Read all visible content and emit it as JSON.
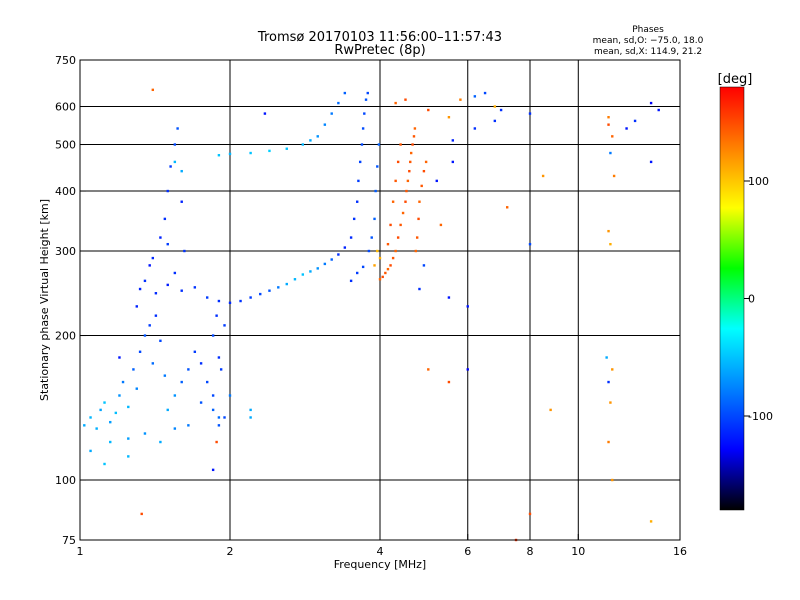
{
  "chart_data": {
    "type": "scatter",
    "title": "Tromsø 20170103 11:56:00–11:57:43",
    "subtitle": "RwPretec (8p)",
    "stats": {
      "header": "Phases",
      "line1": "mean, sd,O: −75.0, 18.0",
      "line2": "mean, sd,X: 114.9, 21.2"
    },
    "xlabel": "Frequency [MHz]",
    "ylabel": "Stationary phase Virtual Height [km]",
    "x_scale": "log",
    "y_scale": "log",
    "xlim": [
      1,
      16
    ],
    "ylim": [
      75,
      750
    ],
    "xticks": [
      1,
      2,
      4,
      6,
      8,
      10,
      16
    ],
    "yticks": [
      75,
      100,
      200,
      300,
      400,
      500,
      600,
      750
    ],
    "x_gridlines": [
      2,
      4,
      6,
      8,
      10
    ],
    "y_gridlines": [
      100,
      200,
      300,
      400,
      500,
      600
    ],
    "colorbar": {
      "label": "[deg]",
      "range": [
        -180,
        180
      ],
      "ticks": [
        100,
        0,
        -100
      ],
      "colors": [
        "#ff0000",
        "#ff8000",
        "#ffff00",
        "#00ff00",
        "#00ffff",
        "#0080ff",
        "#0000ff",
        "#000000"
      ]
    },
    "series": [
      {
        "points": [
          [
            1.02,
            130,
            -60
          ],
          [
            1.05,
            135,
            -55
          ],
          [
            1.08,
            128,
            -58
          ],
          [
            1.1,
            140,
            -62
          ],
          [
            1.12,
            145,
            -50
          ],
          [
            1.15,
            132,
            -65
          ],
          [
            1.18,
            138,
            -52
          ],
          [
            1.2,
            150,
            -70
          ],
          [
            1.22,
            160,
            -80
          ],
          [
            1.25,
            142,
            -55
          ],
          [
            1.28,
            170,
            -90
          ],
          [
            1.3,
            155,
            -75
          ],
          [
            1.32,
            185,
            -100
          ],
          [
            1.35,
            200,
            -95
          ],
          [
            1.38,
            210,
            -105
          ],
          [
            1.4,
            175,
            -85
          ],
          [
            1.42,
            220,
            -110
          ],
          [
            1.45,
            195,
            -100
          ],
          [
            1.48,
            165,
            -80
          ],
          [
            1.5,
            140,
            -60
          ],
          [
            1.55,
            150,
            -70
          ],
          [
            1.6,
            160,
            -90
          ],
          [
            1.65,
            170,
            -95
          ],
          [
            1.7,
            185,
            -105
          ],
          [
            1.75,
            175,
            -110
          ],
          [
            1.8,
            160,
            -100
          ],
          [
            1.85,
            140,
            -90
          ],
          [
            1.9,
            135,
            -85
          ],
          [
            1.05,
            115,
            -60
          ],
          [
            1.15,
            120,
            -55
          ],
          [
            1.25,
            122,
            -65
          ],
          [
            1.35,
            125,
            -70
          ],
          [
            1.45,
            120,
            -60
          ],
          [
            1.55,
            128,
            -75
          ],
          [
            1.65,
            130,
            -80
          ],
          [
            1.75,
            145,
            -95
          ],
          [
            1.85,
            150,
            -100
          ],
          [
            1.9,
            180,
            -110
          ],
          [
            1.92,
            170,
            -105
          ],
          [
            1.2,
            180,
            -120
          ],
          [
            1.3,
            230,
            -115
          ],
          [
            1.35,
            260,
            -110
          ],
          [
            1.4,
            290,
            -112
          ],
          [
            1.45,
            320,
            -115
          ],
          [
            1.48,
            350,
            -110
          ],
          [
            1.5,
            400,
            -110
          ],
          [
            1.52,
            450,
            -105
          ],
          [
            1.55,
            500,
            -100
          ],
          [
            1.57,
            540,
            -95
          ],
          [
            1.6,
            380,
            -115
          ],
          [
            1.62,
            300,
            -108
          ],
          [
            1.5,
            310,
            -105
          ],
          [
            1.55,
            270,
            -110
          ],
          [
            1.38,
            280,
            -120
          ],
          [
            1.32,
            250,
            -115
          ],
          [
            1.42,
            245,
            -112
          ],
          [
            1.5,
            255,
            -118
          ],
          [
            1.6,
            248,
            -110
          ],
          [
            1.7,
            252,
            -108
          ],
          [
            1.8,
            240,
            -105
          ],
          [
            1.9,
            236,
            -110
          ],
          [
            2.0,
            234,
            -112
          ],
          [
            2.1,
            236,
            -108
          ],
          [
            2.2,
            240,
            -105
          ],
          [
            2.3,
            244,
            -100
          ],
          [
            2.4,
            248,
            -95
          ],
          [
            2.5,
            252,
            -80
          ],
          [
            2.6,
            256,
            -60
          ],
          [
            2.7,
            262,
            -55
          ],
          [
            2.8,
            268,
            -50
          ],
          [
            2.9,
            272,
            -60
          ],
          [
            3.0,
            276,
            -70
          ],
          [
            3.1,
            282,
            -80
          ],
          [
            3.2,
            288,
            -90
          ],
          [
            3.3,
            295,
            -110
          ],
          [
            3.4,
            305,
            -115
          ],
          [
            3.5,
            320,
            -112
          ],
          [
            3.55,
            350,
            -108
          ],
          [
            3.6,
            380,
            -110
          ],
          [
            3.62,
            420,
            -105
          ],
          [
            3.65,
            460,
            -102
          ],
          [
            3.68,
            500,
            -100
          ],
          [
            3.7,
            540,
            -98
          ],
          [
            3.72,
            580,
            -100
          ],
          [
            3.75,
            620,
            -95
          ],
          [
            3.78,
            640,
            -100
          ],
          [
            3.4,
            640,
            -90
          ],
          [
            3.3,
            610,
            -85
          ],
          [
            3.2,
            580,
            -80
          ],
          [
            3.1,
            550,
            -75
          ],
          [
            3.0,
            520,
            -70
          ],
          [
            2.9,
            510,
            -60
          ],
          [
            2.8,
            500,
            -55
          ],
          [
            2.6,
            490,
            -50
          ],
          [
            2.4,
            485,
            -45
          ],
          [
            2.2,
            480,
            -50
          ],
          [
            2.0,
            478,
            -55
          ],
          [
            1.9,
            475,
            -50
          ],
          [
            1.6,
            440,
            -60
          ],
          [
            1.55,
            460,
            -55
          ],
          [
            2.35,
            580,
            -120
          ],
          [
            3.8,
            300,
            -100
          ],
          [
            3.85,
            320,
            -95
          ],
          [
            3.9,
            350,
            -90
          ],
          [
            3.92,
            400,
            -92
          ],
          [
            3.95,
            450,
            -95
          ],
          [
            3.98,
            500,
            -90
          ],
          [
            3.5,
            260,
            -110
          ],
          [
            3.6,
            270,
            -105
          ],
          [
            3.7,
            278,
            -100
          ],
          [
            2.0,
            150,
            -80
          ],
          [
            1.85,
            200,
            -100
          ],
          [
            1.95,
            210,
            -105
          ],
          [
            1.88,
            220,
            -110
          ],
          [
            1.12,
            108,
            -50
          ],
          [
            1.25,
            112,
            -55
          ],
          [
            1.9,
            130,
            -95
          ],
          [
            1.95,
            135,
            -100
          ],
          [
            2.2,
            140,
            -60
          ],
          [
            4.0,
            262,
            140
          ],
          [
            4.05,
            265,
            150
          ],
          [
            4.1,
            270,
            145
          ],
          [
            4.15,
            275,
            140
          ],
          [
            4.2,
            280,
            150
          ],
          [
            4.25,
            290,
            145
          ],
          [
            4.3,
            300,
            140
          ],
          [
            4.35,
            320,
            150
          ],
          [
            4.4,
            340,
            145
          ],
          [
            4.45,
            360,
            140
          ],
          [
            4.5,
            380,
            150
          ],
          [
            4.52,
            400,
            145
          ],
          [
            4.55,
            420,
            140
          ],
          [
            4.58,
            440,
            150
          ],
          [
            4.6,
            460,
            145
          ],
          [
            4.62,
            480,
            140
          ],
          [
            4.65,
            500,
            150
          ],
          [
            4.68,
            520,
            145
          ],
          [
            4.7,
            540,
            140
          ],
          [
            4.4,
            500,
            145
          ],
          [
            4.35,
            460,
            150
          ],
          [
            4.3,
            420,
            145
          ],
          [
            4.25,
            380,
            140
          ],
          [
            4.2,
            340,
            150
          ],
          [
            4.15,
            310,
            145
          ],
          [
            4.72,
            300,
            140
          ],
          [
            4.75,
            320,
            145
          ],
          [
            4.78,
            350,
            150
          ],
          [
            4.8,
            380,
            140
          ],
          [
            4.85,
            410,
            145
          ],
          [
            4.9,
            440,
            150
          ],
          [
            4.95,
            460,
            140
          ],
          [
            4.0,
            290,
            110
          ],
          [
            3.9,
            280,
            115
          ],
          [
            3.95,
            300,
            105
          ],
          [
            4.3,
            610,
            140
          ],
          [
            4.5,
            620,
            150
          ],
          [
            5.0,
            590,
            150
          ],
          [
            5.5,
            570,
            120
          ],
          [
            5.8,
            620,
            130
          ],
          [
            6.2,
            630,
            -90
          ],
          [
            6.5,
            640,
            -100
          ],
          [
            7.0,
            590,
            -110
          ],
          [
            6.8,
            600,
            110
          ],
          [
            6.0,
            230,
            -120
          ],
          [
            6.0,
            170,
            -130
          ],
          [
            5.5,
            160,
            150
          ],
          [
            5.0,
            170,
            140
          ],
          [
            5.5,
            240,
            -120
          ],
          [
            5.2,
            420,
            -120
          ],
          [
            5.3,
            340,
            140
          ],
          [
            4.9,
            280,
            -100
          ],
          [
            4.8,
            250,
            -110
          ],
          [
            5.6,
            460,
            -120
          ],
          [
            5.6,
            510,
            -115
          ],
          [
            6.2,
            540,
            -110
          ],
          [
            6.8,
            560,
            -110
          ],
          [
            7.2,
            370,
            140
          ],
          [
            8.0,
            310,
            -100
          ],
          [
            8.0,
            580,
            -110
          ],
          [
            8.5,
            430,
            120
          ],
          [
            8.0,
            85,
            150
          ],
          [
            8.8,
            140,
            120
          ],
          [
            11.5,
            570,
            130
          ],
          [
            11.5,
            550,
            150
          ],
          [
            11.7,
            520,
            140
          ],
          [
            11.6,
            480,
            -80
          ],
          [
            11.8,
            430,
            130
          ],
          [
            11.5,
            330,
            120
          ],
          [
            11.6,
            310,
            110
          ],
          [
            11.4,
            180,
            -60
          ],
          [
            11.7,
            170,
            120
          ],
          [
            11.5,
            160,
            -110
          ],
          [
            11.6,
            145,
            120
          ],
          [
            11.5,
            120,
            130
          ],
          [
            11.7,
            100,
            120
          ],
          [
            12.5,
            540,
            -120
          ],
          [
            13.0,
            560,
            -110
          ],
          [
            14.0,
            610,
            -130
          ],
          [
            14.0,
            460,
            -120
          ],
          [
            14.0,
            82,
            110
          ],
          [
            14.5,
            590,
            -120
          ],
          [
            1.4,
            650,
            140
          ],
          [
            1.33,
            85,
            150
          ],
          [
            1.88,
            120,
            150
          ],
          [
            1.85,
            105,
            -120
          ],
          [
            2.2,
            135,
            -60
          ],
          [
            7.5,
            75,
            160
          ]
        ]
      }
    ]
  }
}
